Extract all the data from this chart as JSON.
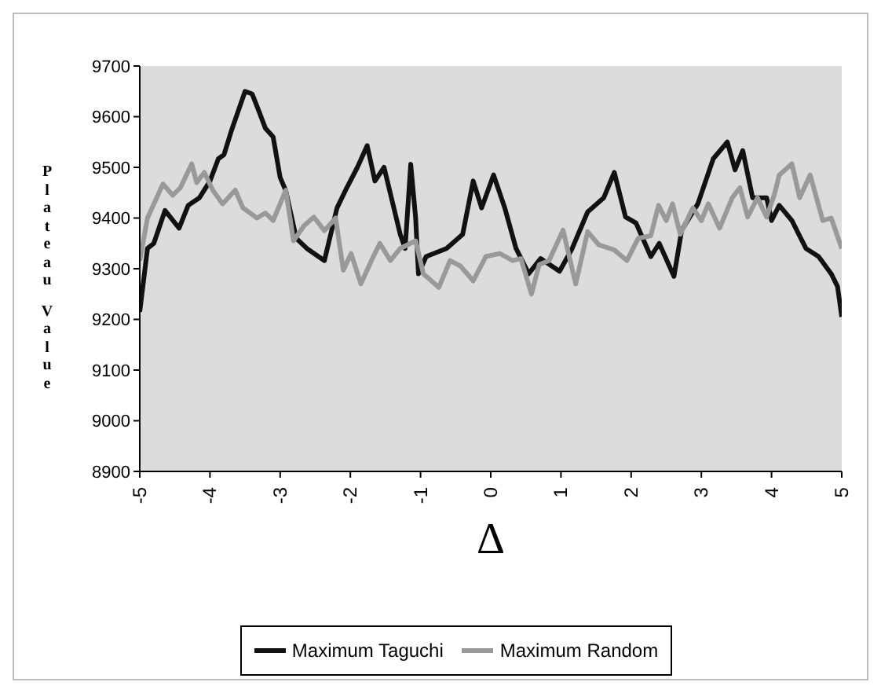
{
  "chart_data": {
    "type": "line",
    "xlabel": "Δ",
    "ylabel": "Plateau Value",
    "xlim": [
      -5,
      5
    ],
    "xticks": [
      -5,
      -4,
      -3,
      -2,
      -1,
      0,
      1,
      2,
      3,
      4,
      5
    ],
    "ylim": [
      8900,
      9700
    ],
    "yticks": [
      8900,
      9000,
      9100,
      9200,
      9300,
      9400,
      9500,
      9600,
      9700
    ],
    "grid": false,
    "legend": "bottom",
    "marker": "none",
    "line_style": "solid",
    "series": [
      {
        "name": "Maximum Taguchi",
        "color": "#111111",
        "x": [
          -5,
          -4.89,
          -4.8,
          -4.64,
          -4.44,
          -4.31,
          -4.15,
          -4,
          -3.88,
          -3.8,
          -3.7,
          -3.6,
          -3.5,
          -3.4,
          -3.3,
          -3.21,
          -3.1,
          -3,
          -2.92,
          -2.77,
          -2.62,
          -2.37,
          -2.19,
          -2.05,
          -1.9,
          -1.76,
          -1.65,
          -1.52,
          -1.29,
          -1.22,
          -1.14,
          -1.07,
          -1.03,
          -0.92,
          -0.63,
          -0.4,
          -0.25,
          -0.13,
          0.04,
          0.2,
          0.36,
          0.54,
          0.71,
          0.98,
          1.16,
          1.38,
          1.61,
          1.76,
          1.92,
          2.07,
          2.28,
          2.4,
          2.61,
          2.72,
          2.95,
          3.17,
          3.37,
          3.48,
          3.59,
          3.73,
          3.93,
          4,
          4.11,
          4.29,
          4.49,
          4.67,
          4.85,
          4.94,
          5
        ],
        "values": [
          9215,
          9340,
          9350,
          9415,
          9380,
          9425,
          9440,
          9473,
          9517,
          9525,
          9570,
          9610,
          9650,
          9645,
          9610,
          9577,
          9560,
          9480,
          9454,
          9360,
          9340,
          9316,
          9420,
          9460,
          9500,
          9543,
          9473,
          9500,
          9368,
          9340,
          9506,
          9400,
          9290,
          9324,
          9340,
          9368,
          9473,
          9420,
          9485,
          9420,
          9340,
          9290,
          9320,
          9295,
          9340,
          9412,
          9440,
          9490,
          9402,
          9390,
          9324,
          9350,
          9285,
          9376,
          9428,
          9517,
          9550,
          9495,
          9533,
          9440,
          9440,
          9395,
          9425,
          9395,
          9340,
          9324,
          9290,
          9265,
          9205
        ]
      },
      {
        "name": "Maximum Random",
        "color": "#999999",
        "x": [
          -5,
          -4.89,
          -4.67,
          -4.53,
          -4.42,
          -4.26,
          -4.19,
          -4.08,
          -3.96,
          -3.82,
          -3.64,
          -3.53,
          -3.33,
          -3.21,
          -3.1,
          -2.92,
          -2.81,
          -2.66,
          -2.52,
          -2.37,
          -2.21,
          -2.1,
          -1.99,
          -1.85,
          -1.7,
          -1.58,
          -1.43,
          -1.29,
          -1.07,
          -0.96,
          -0.74,
          -0.58,
          -0.43,
          -0.25,
          -0.07,
          0.13,
          0.31,
          0.43,
          0.58,
          0.69,
          0.83,
          1.03,
          1.21,
          1.38,
          1.54,
          1.76,
          1.94,
          2.1,
          2.28,
          2.39,
          2.5,
          2.59,
          2.7,
          2.88,
          3,
          3.1,
          3.26,
          3.44,
          3.55,
          3.66,
          3.8,
          3.93,
          4.04,
          4.11,
          4.29,
          4.4,
          4.55,
          4.73,
          4.85,
          5
        ],
        "values": [
          9316,
          9400,
          9467,
          9445,
          9460,
          9507,
          9470,
          9490,
          9455,
          9428,
          9455,
          9420,
          9400,
          9410,
          9395,
          9455,
          9355,
          9385,
          9402,
          9375,
          9400,
          9297,
          9330,
          9270,
          9316,
          9350,
          9316,
          9340,
          9355,
          9290,
          9263,
          9316,
          9305,
          9276,
          9324,
          9330,
          9316,
          9320,
          9250,
          9308,
          9316,
          9376,
          9270,
          9373,
          9347,
          9337,
          9316,
          9360,
          9365,
          9425,
          9395,
          9428,
          9368,
          9420,
          9395,
          9428,
          9380,
          9440,
          9460,
          9402,
          9440,
          9402,
          9446,
          9485,
          9507,
          9440,
          9485,
          9395,
          9400,
          9340
        ]
      }
    ]
  }
}
